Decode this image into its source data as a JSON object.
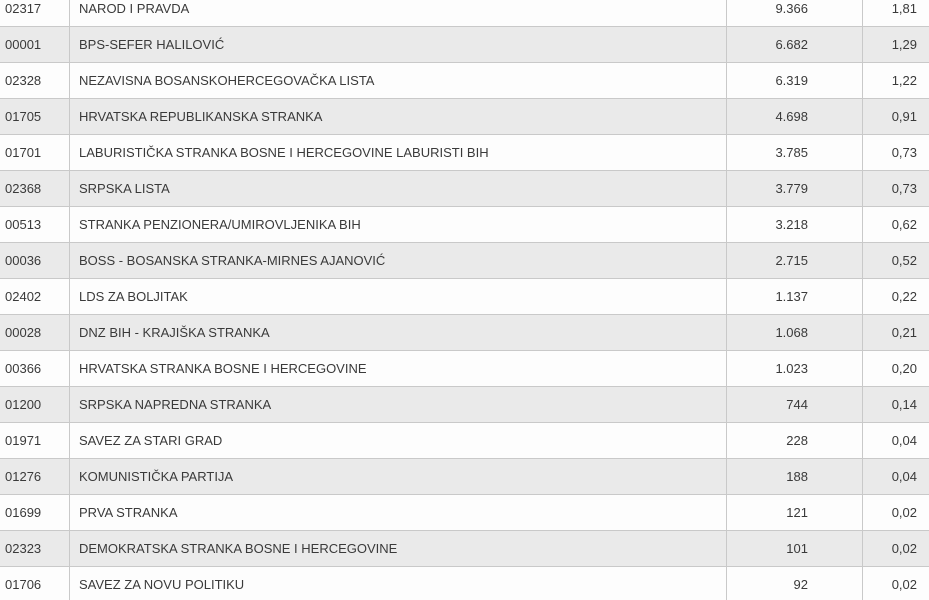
{
  "colors": {
    "row_bg": "#fdfdfd",
    "row_alt_bg": "#eaeaea",
    "border": "#c9c9c9",
    "text": "#3a3a3a"
  },
  "results_table": {
    "columns": [
      "code",
      "name",
      "votes",
      "percent"
    ],
    "rows": [
      {
        "code": "02317",
        "name": "NAROD I PRAVDA",
        "votes": "9.366",
        "percent": "1,81"
      },
      {
        "code": "00001",
        "name": "BPS-SEFER HALILOVIĆ",
        "votes": "6.682",
        "percent": "1,29"
      },
      {
        "code": "02328",
        "name": "NEZAVISNA BOSANSKOHERCEGOVAČKA LISTA",
        "votes": "6.319",
        "percent": "1,22"
      },
      {
        "code": "01705",
        "name": "HRVATSKA REPUBLIKANSKA STRANKA",
        "votes": "4.698",
        "percent": "0,91"
      },
      {
        "code": "01701",
        "name": "LABURISTIČKA STRANKA BOSNE I HERCEGOVINE LABURISTI BIH",
        "votes": "3.785",
        "percent": "0,73"
      },
      {
        "code": "02368",
        "name": "SRPSKA LISTA",
        "votes": "3.779",
        "percent": "0,73"
      },
      {
        "code": "00513",
        "name": "STRANKA PENZIONERA/UMIROVLJENIKA BIH",
        "votes": "3.218",
        "percent": "0,62"
      },
      {
        "code": "00036",
        "name": "BOSS - BOSANSKA STRANKA-MIRNES AJANOVIĆ",
        "votes": "2.715",
        "percent": "0,52"
      },
      {
        "code": "02402",
        "name": "LDS ZA BOLJITAK",
        "votes": "1.137",
        "percent": "0,22"
      },
      {
        "code": "00028",
        "name": "DNZ BIH - KRAJIŠKA STRANKA",
        "votes": "1.068",
        "percent": "0,21"
      },
      {
        "code": "00366",
        "name": "HRVATSKA STRANKA BOSNE I HERCEGOVINE",
        "votes": "1.023",
        "percent": "0,20"
      },
      {
        "code": "01200",
        "name": "SRPSKA NAPREDNA STRANKA",
        "votes": "744",
        "percent": "0,14"
      },
      {
        "code": "01971",
        "name": "SAVEZ ZA STARI GRAD",
        "votes": "228",
        "percent": "0,04"
      },
      {
        "code": "01276",
        "name": "KOMUNISTIČKA PARTIJA",
        "votes": "188",
        "percent": "0,04"
      },
      {
        "code": "01699",
        "name": "PRVA STRANKA",
        "votes": "121",
        "percent": "0,02"
      },
      {
        "code": "02323",
        "name": "DEMOKRATSKA STRANKA BOSNE I HERCEGOVINE",
        "votes": "101",
        "percent": "0,02"
      },
      {
        "code": "01706",
        "name": "SAVEZ ZA NOVU POLITIKU",
        "votes": "92",
        "percent": "0,02"
      }
    ]
  }
}
